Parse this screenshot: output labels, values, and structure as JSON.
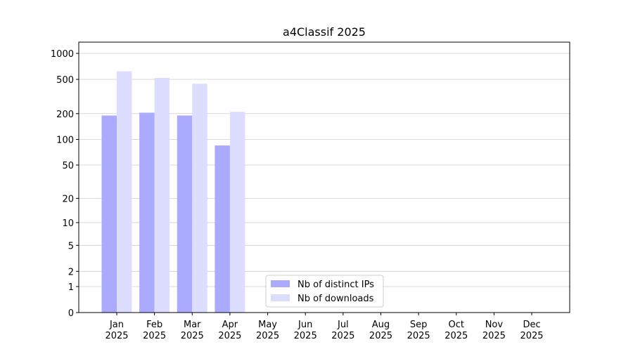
{
  "chart_data": {
    "type": "bar",
    "title": "a4Classif 2025",
    "categories": [
      "Jan 2025",
      "Feb 2025",
      "Mar 2025",
      "Apr 2025",
      "May 2025",
      "Jun 2025",
      "Jul 2025",
      "Aug 2025",
      "Sep 2025",
      "Oct 2025",
      "Nov 2025",
      "Dec 2025"
    ],
    "series": [
      {
        "name": "Nb of distinct IPs",
        "color": "#aaaaff",
        "values": [
          190,
          205,
          190,
          85,
          null,
          null,
          null,
          null,
          null,
          null,
          null,
          null
        ]
      },
      {
        "name": "Nb of downloads",
        "color": "#ddddff",
        "values": [
          620,
          520,
          445,
          210,
          null,
          null,
          null,
          null,
          null,
          null,
          null,
          null
        ]
      }
    ],
    "yscale": "symlog",
    "ylim": [
      0,
      1350
    ],
    "yticks": [
      0,
      1,
      2,
      5,
      10,
      20,
      50,
      100,
      200,
      500,
      1000
    ],
    "grid": true,
    "legend": "lower center"
  }
}
